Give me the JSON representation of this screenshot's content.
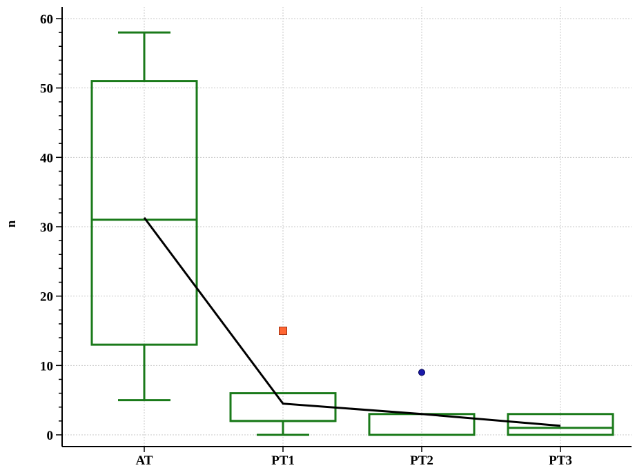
{
  "chart_data": {
    "type": "box",
    "ylabel": "n",
    "xlabel": "",
    "ylim": [
      -1.5,
      62
    ],
    "yticks": [
      0,
      10,
      20,
      30,
      40,
      50,
      60
    ],
    "grid": true,
    "categories": [
      "AT",
      "PT1",
      "PT2",
      "PT3"
    ],
    "boxes": [
      {
        "category": "AT",
        "min": 5,
        "q1": 13,
        "median": 31,
        "q3": 51,
        "max": 58
      },
      {
        "category": "PT1",
        "min": 0,
        "q1": 2,
        "median": 2,
        "q3": 6,
        "max": 6
      },
      {
        "category": "PT2",
        "min": 0,
        "q1": 0,
        "median": 0,
        "q3": 3,
        "max": 3
      },
      {
        "category": "PT3",
        "min": 0,
        "q1": 0,
        "median": 1,
        "q3": 3,
        "max": 3
      }
    ],
    "outliers": [
      {
        "category": "PT1",
        "value": 15,
        "marker": "square",
        "color": "#ff6633"
      },
      {
        "category": "PT2",
        "value": 9,
        "marker": "circle",
        "color": "#1a1aaa"
      }
    ],
    "mean_line": [
      {
        "category": "AT",
        "value": 31.3
      },
      {
        "category": "PT1",
        "value": 4.5
      },
      {
        "category": "PT2",
        "value": 3.0
      },
      {
        "category": "PT3",
        "value": 1.3
      }
    ],
    "colors": {
      "box": "#1a7a1a",
      "mean_line": "#000000",
      "grid": "#c8c8c8"
    }
  }
}
